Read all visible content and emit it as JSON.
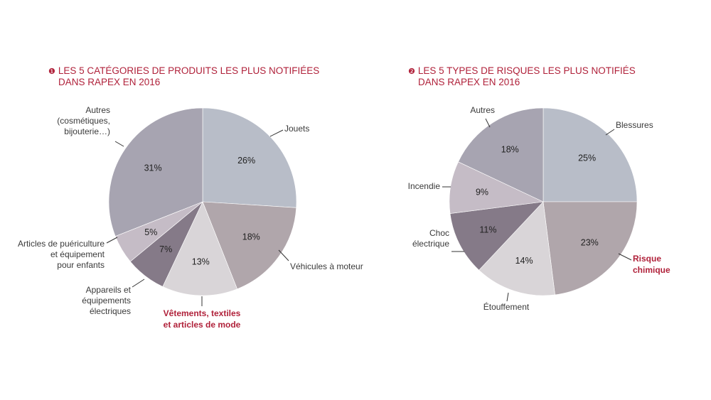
{
  "chart_data": [
    {
      "type": "pie",
      "title_number": "❶",
      "title": [
        "LES 5 CATÉGORIES DE PRODUITS LES PLUS NOTIFIÉES",
        "DANS RAPEX EN 2016"
      ],
      "slices": [
        {
          "label": [
            "Jouets"
          ],
          "value": 26,
          "value_label": "26%",
          "color": "#b8bdc8",
          "highlight": false
        },
        {
          "label": [
            "Véhicules à moteur"
          ],
          "value": 18,
          "value_label": "18%",
          "color": "#b0a6ab",
          "highlight": false
        },
        {
          "label": [
            "Vêtements, textiles",
            "et articles de mode"
          ],
          "value": 13,
          "value_label": "13%",
          "color": "#d9d5d8",
          "highlight": true
        },
        {
          "label": [
            "Appareils et",
            "équipements",
            "électriques"
          ],
          "value": 7,
          "value_label": "7%",
          "color": "#857a88",
          "highlight": false
        },
        {
          "label": [
            "Articles de puériculture",
            "et équipement",
            "pour enfants"
          ],
          "value": 5,
          "value_label": "5%",
          "color": "#c5bcc6",
          "highlight": false
        },
        {
          "label": [
            "Autres",
            "(cosmétiques,",
            "bijouterie…)"
          ],
          "value": 31,
          "value_label": "31%",
          "color": "#a7a4b1",
          "highlight": false
        }
      ]
    },
    {
      "type": "pie",
      "title_number": "❷",
      "title": [
        "LES 5 TYPES DE RISQUES LES PLUS NOTIFIÉS",
        "DANS RAPEX EN 2016"
      ],
      "slices": [
        {
          "label": [
            "Blessures"
          ],
          "value": 25,
          "value_label": "25%",
          "color": "#b8bdc8",
          "highlight": false
        },
        {
          "label": [
            "Risque",
            "chimique"
          ],
          "value": 23,
          "value_label": "23%",
          "color": "#b0a6ab",
          "highlight": true
        },
        {
          "label": [
            "Étouffement"
          ],
          "value": 14,
          "value_label": "14%",
          "color": "#d9d5d8",
          "highlight": false
        },
        {
          "label": [
            "Choc",
            "électrique"
          ],
          "value": 11,
          "value_label": "11%",
          "color": "#857a88",
          "highlight": false
        },
        {
          "label": [
            "Incendie"
          ],
          "value": 9,
          "value_label": "9%",
          "color": "#c5bcc6",
          "highlight": false
        },
        {
          "label": [
            "Autres"
          ],
          "value": 18,
          "value_label": "18%",
          "color": "#a7a4b1",
          "highlight": false
        }
      ]
    }
  ]
}
